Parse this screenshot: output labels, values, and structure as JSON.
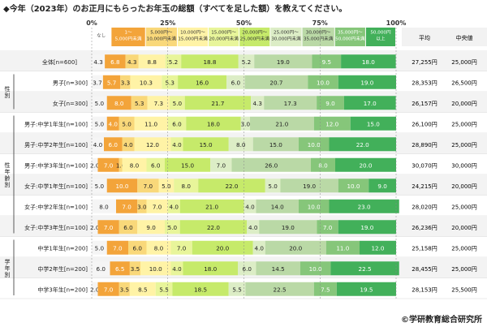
{
  "title": "◆今年（2023年）のお正月にもらったお年玉の総額（すべてを足した額）を教えてください。",
  "copyright": "©学研教育総合研究所",
  "headers": {
    "average": "平均",
    "median": "中央値"
  },
  "group_labels": [
    "性別",
    "性年齢別",
    "学年別"
  ],
  "colors": [
    "#9b9b9b",
    "#e96b1e",
    "#f3a43a",
    "#f9d87a",
    "#fff3a6",
    "#e8f59a",
    "#c6ea6a",
    "#dcedc6",
    "#bad9a6",
    "#86c67a",
    "#42b05a",
    "#14903e"
  ],
  "chart_data": {
    "type": "bar",
    "stacked": true,
    "orientation": "horizontal",
    "title": "◆今年（2023年）のお正月にもらったお年玉の総額（すべてを足した額）を教えてください。",
    "xlim": [
      0,
      100
    ],
    "x_ticks": [
      "0%",
      "25%",
      "50%",
      "75%",
      "100%"
    ],
    "legend": [
      "なし",
      "1～5,000円未満",
      "5,000円～10,000円未満",
      "10,000円～15,000円未満",
      "15,000円～20,000円未満",
      "20,000円～25,000円未満",
      "25,000円～30,000円未満",
      "30,000円～35,000円未満",
      "35,000円～50,000円未満",
      "50,000円以上"
    ],
    "categories": [
      "全体[n=600]",
      "男子[n=300]",
      "女子[n=300]",
      "男子:中学1年生[n=100]",
      "男子:中学2年生[n=100]",
      "男子:中学3年生[n=100]",
      "女子:中学1年生[n=100]",
      "女子:中学2年生[n=100]",
      "女子:中学3年生[n=100]",
      "中学1年生[n=200]",
      "中学2年生[n=200]",
      "中学3年生[n=200]"
    ],
    "rows": [
      {
        "label": "全体[n=600]",
        "values": [
          4.3,
          6.8,
          4.3,
          8.8,
          5.2,
          18.8,
          5.2,
          19.0,
          9.5,
          18.0
        ],
        "average": "27,255円",
        "median": "25,000円"
      },
      {
        "label": "男子[n=300]",
        "values": [
          3.7,
          5.7,
          3.3,
          10.3,
          5.3,
          16.0,
          6.0,
          20.7,
          10.0,
          19.0
        ],
        "average": "28,353円",
        "median": "26,500円"
      },
      {
        "label": "女子[n=300]",
        "values": [
          5.0,
          8.0,
          5.3,
          7.3,
          5.0,
          21.7,
          4.3,
          17.3,
          9.0,
          17.0
        ],
        "average": "26,157円",
        "median": "20,000円"
      },
      {
        "label": "男子:中学1年生[n=100]",
        "values": [
          5.0,
          4.0,
          5.0,
          11.0,
          6.0,
          18.0,
          3.0,
          21.0,
          12.0,
          15.0
        ],
        "average": "26,100円",
        "median": "25,000円"
      },
      {
        "label": "男子:中学2年生[n=100]",
        "values": [
          4.0,
          6.0,
          4.0,
          12.0,
          4.0,
          15.0,
          8.0,
          15.0,
          10.0,
          22.0
        ],
        "average": "28,890円",
        "median": "25,000円"
      },
      {
        "label": "男子:中学3年生[n=100]",
        "values": [
          2.0,
          7.0,
          1.0,
          8.0,
          6.0,
          15.0,
          7.0,
          26.0,
          8.0,
          20.0
        ],
        "average": "30,070円",
        "median": "30,000円"
      },
      {
        "label": "女子:中学1年生[n=100]",
        "values": [
          5.0,
          10.0,
          7.0,
          5.0,
          8.0,
          22.0,
          5.0,
          19.0,
          10.0,
          9.0
        ],
        "average": "24,215円",
        "median": "20,000円"
      },
      {
        "label": "女子:中学2年生[n=100]",
        "values": [
          8.0,
          7.0,
          3.0,
          7.0,
          4.0,
          21.0,
          4.0,
          14.0,
          10.0,
          23.0
        ],
        "average": "28,020円",
        "median": "25,000円"
      },
      {
        "label": "女子:中学3年生[n=100]",
        "values": [
          2.0,
          7.0,
          6.0,
          9.0,
          5.0,
          22.0,
          4.0,
          19.0,
          7.0,
          19.0
        ],
        "average": "26,236円",
        "median": "20,000円"
      },
      {
        "label": "中学1年生[n=200]",
        "values": [
          5.0,
          7.0,
          6.0,
          8.0,
          7.0,
          20.0,
          4.0,
          20.0,
          11.0,
          12.0
        ],
        "average": "25,158円",
        "median": "25,000円"
      },
      {
        "label": "中学2年生[n=200]",
        "values": [
          6.0,
          6.5,
          3.5,
          10.0,
          4.0,
          18.0,
          6.0,
          14.5,
          10.0,
          22.5
        ],
        "average": "28,455円",
        "median": "25,000円"
      },
      {
        "label": "中学3年生[n=200]",
        "values": [
          2.0,
          7.0,
          3.5,
          8.5,
          5.5,
          18.5,
          5.5,
          22.5,
          7.5,
          19.5
        ],
        "average": "28,153円",
        "median": "25,500円"
      }
    ]
  }
}
